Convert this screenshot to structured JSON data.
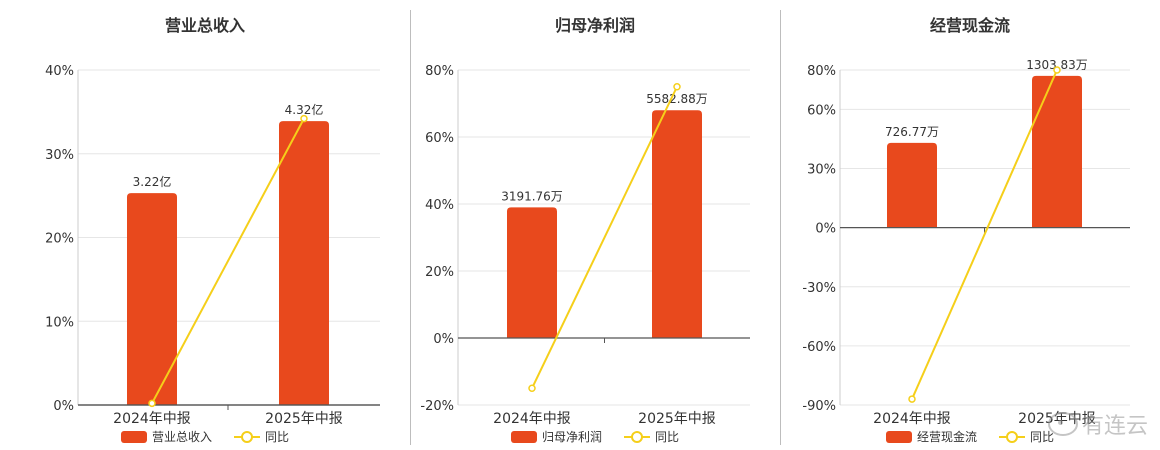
{
  "chart_data": [
    {
      "type": "bar",
      "title": "营业总收入",
      "categories": [
        "2024年中报",
        "2025年中报"
      ],
      "series": [
        {
          "name": "营业总收入",
          "kind": "bar",
          "values": [
            25.3,
            33.9
          ],
          "labels": [
            "3.22亿",
            "4.32亿"
          ]
        },
        {
          "name": "同比",
          "kind": "line",
          "values": [
            0.2,
            34.2
          ]
        }
      ],
      "yticks": [
        0,
        10,
        20,
        30,
        40
      ],
      "yticklabels": [
        "0%",
        "10%",
        "20%",
        "30%",
        "40%"
      ],
      "ylim": [
        0,
        40
      ],
      "colors": {
        "bar": "#e8491d",
        "line": "#f5cf1a"
      }
    },
    {
      "type": "bar",
      "title": "归母净利润",
      "categories": [
        "2024年中报",
        "2025年中报"
      ],
      "series": [
        {
          "name": "归母净利润",
          "kind": "bar",
          "values": [
            39,
            68
          ],
          "labels": [
            "3191.76万",
            "5582.88万"
          ]
        },
        {
          "name": "同比",
          "kind": "line",
          "values": [
            -15,
            75
          ]
        }
      ],
      "yticks": [
        -20,
        0,
        20,
        40,
        60,
        80
      ],
      "yticklabels": [
        "-20%",
        "0%",
        "20%",
        "40%",
        "60%",
        "80%"
      ],
      "ylim": [
        -20,
        80
      ],
      "colors": {
        "bar": "#e8491d",
        "line": "#f5cf1a"
      }
    },
    {
      "type": "bar",
      "title": "经营现金流",
      "categories": [
        "2024年中报",
        "2025年中报"
      ],
      "series": [
        {
          "name": "经营现金流",
          "kind": "bar",
          "values": [
            43,
            77
          ],
          "labels": [
            "726.77万",
            "1303.83万"
          ]
        },
        {
          "name": "同比",
          "kind": "line",
          "values": [
            -87,
            80
          ]
        }
      ],
      "yticks": [
        -90,
        -60,
        -30,
        0,
        30,
        60,
        80
      ],
      "yticklabels": [
        "-90%",
        "-60%",
        "-30%",
        "0%",
        "30%",
        "60%",
        "80%"
      ],
      "ylim": [
        -90,
        80
      ],
      "colors": {
        "bar": "#e8491d",
        "line": "#f5cf1a"
      }
    }
  ],
  "watermark": {
    "text": "有连云"
  }
}
